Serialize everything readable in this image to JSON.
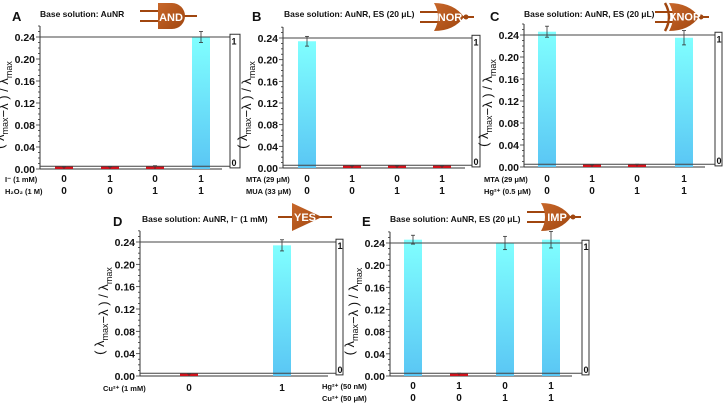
{
  "colors": {
    "bar_high_top": "#80ffff",
    "bar_high_bottom": "#5ac6f4",
    "bar_low": "#d0121c",
    "gate": "#a0460f",
    "gate_light": "#c8672a"
  },
  "chart_data": [
    {
      "type": "bar",
      "panel": "A",
      "title": "Base solution: AuNR",
      "gate": "AND",
      "ylabel": "( λmax−λ ) / λmax",
      "ylim": [
        0,
        0.26
      ],
      "yticks": [
        "0.00",
        "0.04",
        "0.08",
        "0.12",
        "0.16",
        "0.20",
        "0.24"
      ],
      "threshold": 0.24,
      "output_box": [
        "1",
        "0"
      ],
      "inputs": [
        {
          "label": "I⁻ (1 mM)",
          "values": [
            "0",
            "1",
            "0",
            "1"
          ]
        },
        {
          "label": "H₂O₂ (1 M)",
          "values": [
            "0",
            "0",
            "1",
            "1"
          ]
        }
      ],
      "values": [
        0.002,
        0.002,
        0.003,
        0.24
      ],
      "errors": [
        0.002,
        0.002,
        0.003,
        0.01
      ]
    },
    {
      "type": "bar",
      "panel": "B",
      "title": "Base solution: AuNR, ES (20 μL)",
      "gate": "NOR",
      "ylabel": "( λmax−λ ) / λmax",
      "ylim": [
        0,
        0.26
      ],
      "yticks": [
        "0.00",
        "0.04",
        "0.08",
        "0.12",
        "0.16",
        "0.20",
        "0.24"
      ],
      "threshold": 0.24,
      "output_box": [
        "1",
        "0"
      ],
      "inputs": [
        {
          "label": "MTA (29 μM)",
          "values": [
            "0",
            "1",
            "0",
            "1"
          ]
        },
        {
          "label": "MUA (33 μM)",
          "values": [
            "0",
            "0",
            "1",
            "1"
          ]
        }
      ],
      "values": [
        0.234,
        0.002,
        0.002,
        0.002
      ],
      "errors": [
        0.009,
        0.002,
        0.002,
        0.002
      ]
    },
    {
      "type": "bar",
      "panel": "C",
      "title": "Base solution: AuNR, ES (20 μL)",
      "gate": "XNOR",
      "ylabel": "( λmax−λ ) / λmax",
      "ylim": [
        0,
        0.26
      ],
      "yticks": [
        "0.00",
        "0.04",
        "0.08",
        "0.12",
        "0.16",
        "0.20",
        "0.24"
      ],
      "threshold": 0.24,
      "output_box": [
        "1",
        "0"
      ],
      "inputs": [
        {
          "label": "MTA (29 μM)",
          "values": [
            "0",
            "1",
            "0",
            "1"
          ]
        },
        {
          "label": "Hg²⁺ (0.5 μM)",
          "values": [
            "0",
            "0",
            "1",
            "1"
          ]
        }
      ],
      "values": [
        0.246,
        0.002,
        0.003,
        0.235
      ],
      "errors": [
        0.01,
        0.002,
        0.002,
        0.013
      ]
    },
    {
      "type": "bar",
      "panel": "D",
      "title": "Base solution: AuNR, I⁻ (1 mM)",
      "gate": "YES",
      "ylabel": "( λmax−λ ) / λmax",
      "ylim": [
        0,
        0.26
      ],
      "yticks": [
        "0.00",
        "0.04",
        "0.08",
        "0.12",
        "0.16",
        "0.20",
        "0.24"
      ],
      "threshold": 0.24,
      "output_box": [
        "1",
        "0"
      ],
      "inputs": [
        {
          "label": "Cu²⁺ (1 mM)",
          "values": [
            "0",
            "1"
          ]
        }
      ],
      "values": [
        0.002,
        0.234
      ],
      "errors": [
        0.002,
        0.01
      ]
    },
    {
      "type": "bar",
      "panel": "E",
      "title": "Base solution: AuNR, ES (20 μL)",
      "gate": "IMP",
      "ylabel": "( λmax−λ ) / λmax",
      "ylim": [
        0,
        0.26
      ],
      "yticks": [
        "0.00",
        "0.04",
        "0.08",
        "0.12",
        "0.16",
        "0.20",
        "0.24"
      ],
      "threshold": 0.24,
      "output_box": [
        "1",
        "0"
      ],
      "inputs": [
        {
          "label": "Hg²⁺ (50 nM)",
          "values": [
            "0",
            "1",
            "0",
            "1"
          ]
        },
        {
          "label": "Cu²⁺ (50 μM)",
          "values": [
            "0",
            "0",
            "1",
            "1"
          ]
        }
      ],
      "values": [
        0.246,
        0.003,
        0.24,
        0.246
      ],
      "errors": [
        0.008,
        0.002,
        0.012,
        0.015
      ]
    }
  ]
}
